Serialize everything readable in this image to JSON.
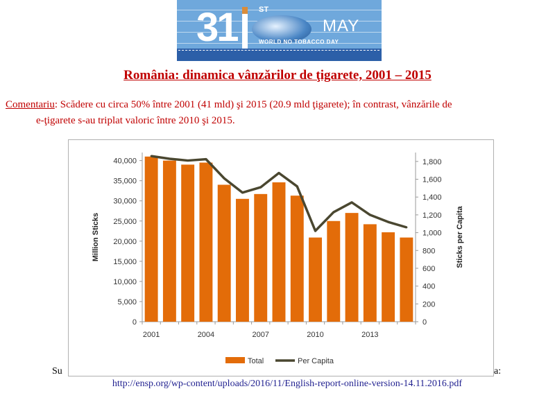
{
  "banner": {
    "number": "31",
    "superscript": "ST",
    "month": "MAY",
    "tagline": "WORLD NO TOBACCO DAY"
  },
  "title": "România: dinamica vânzărilor de ţigarete, 2001 – 2015",
  "comment": {
    "label": "Comentariu",
    "line1": ": Scădere cu circa 50% între 2001 (41 mld) şi 2015 (20.9 mld ţigarete); în contrast, vânzările de",
    "line2": "e-ţigarete s-au triplat valoric între 2010 şi 2015."
  },
  "source": {
    "left_fragment": "Su",
    "right_fragment": "a:",
    "url": "http://ensp.org/wp-content/uploads/2016/11/English-report-online-version-14.11.2016.pdf"
  },
  "chart_data": {
    "type": "bar",
    "title": "",
    "x": [
      2001,
      2002,
      2003,
      2004,
      2005,
      2006,
      2007,
      2008,
      2009,
      2010,
      2011,
      2012,
      2013,
      2014,
      2015
    ],
    "x_tick_labels": [
      "2001",
      "2004",
      "2007",
      "2010",
      "2013"
    ],
    "series": [
      {
        "name": "Total",
        "type": "bar",
        "axis": "left",
        "color": "#e36c09",
        "values": [
          41000,
          40000,
          39000,
          39500,
          34000,
          30500,
          31700,
          34600,
          31300,
          20900,
          25000,
          27000,
          24200,
          22200,
          20900
        ]
      },
      {
        "name": "Per Capita",
        "type": "line",
        "axis": "right",
        "color": "#4a4730",
        "values": [
          1860,
          1830,
          1810,
          1825,
          1610,
          1450,
          1510,
          1670,
          1520,
          1020,
          1230,
          1340,
          1200,
          1120,
          1060
        ]
      }
    ],
    "y_left": {
      "label": "Million Sticks",
      "range": [
        0,
        42000
      ],
      "ticks": [
        "0",
        "5,000",
        "10,000",
        "15,000",
        "20,000",
        "25,000",
        "30,000",
        "35,000",
        "40,000"
      ]
    },
    "y_right": {
      "label": "Sticks per Capita",
      "range": [
        0,
        1900
      ],
      "ticks": [
        "0",
        "200",
        "400",
        "600",
        "800",
        "1,000",
        "1,200",
        "1,400",
        "1,600",
        "1,800"
      ]
    },
    "legend": {
      "position": "bottom",
      "entries": [
        "Total",
        "Per Capita"
      ]
    },
    "grid": false
  }
}
